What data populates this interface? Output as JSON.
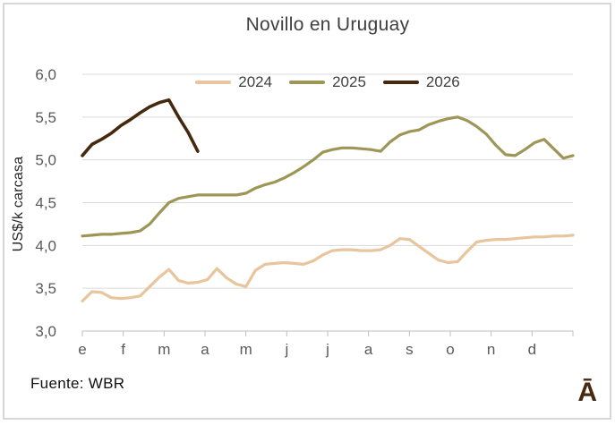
{
  "chart_data": {
    "type": "line",
    "title": "Novillo en Uruguay",
    "ylabel": "US$/k carcasa",
    "source": "Fuente: WBR",
    "logo": "Ā",
    "grid": true,
    "legend_position": "top",
    "ylim": [
      3.0,
      6.0
    ],
    "y_tick_step": 0.5,
    "y_ticks": [
      {
        "value": 6.0,
        "label": "6,0"
      },
      {
        "value": 5.5,
        "label": "5,5"
      },
      {
        "value": 5.0,
        "label": "5,0"
      },
      {
        "value": 4.5,
        "label": "4,5"
      },
      {
        "value": 4.0,
        "label": "4,0"
      },
      {
        "value": 3.5,
        "label": "3,5"
      },
      {
        "value": 3.0,
        "label": "3,0"
      }
    ],
    "x_tick_labels": [
      "e",
      "f",
      "m",
      "a",
      "m",
      "j",
      "j",
      "a",
      "s",
      "o",
      "n",
      "d"
    ],
    "x_unit": "weeks",
    "points_per_year": 52,
    "colors": {
      "gridline": "#d9d9d9",
      "axis": "#bfbfbf",
      "tick_label": "#595959",
      "title_text": "#3f3f3f"
    },
    "series": [
      {
        "name": "2024",
        "color": "#e8c59d",
        "stroke_width": 3.2,
        "values": [
          3.35,
          3.46,
          3.45,
          3.39,
          3.38,
          3.39,
          3.41,
          3.52,
          3.63,
          3.72,
          3.59,
          3.56,
          3.57,
          3.6,
          3.73,
          3.62,
          3.55,
          3.52,
          3.71,
          3.78,
          3.79,
          3.8,
          3.79,
          3.78,
          3.82,
          3.89,
          3.94,
          3.95,
          3.95,
          3.94,
          3.94,
          3.95,
          4.0,
          4.08,
          4.07,
          3.99,
          3.91,
          3.83,
          3.8,
          3.81,
          3.93,
          4.04,
          4.06,
          4.07,
          4.07,
          4.08,
          4.09,
          4.1,
          4.1,
          4.11,
          4.11,
          4.12
        ]
      },
      {
        "name": "2025",
        "color": "#9d9657",
        "stroke_width": 3.2,
        "values": [
          4.11,
          4.12,
          4.13,
          4.13,
          4.14,
          4.15,
          4.17,
          4.25,
          4.38,
          4.5,
          4.55,
          4.57,
          4.59,
          4.59,
          4.59,
          4.59,
          4.59,
          4.61,
          4.67,
          4.71,
          4.74,
          4.79,
          4.85,
          4.92,
          5.0,
          5.09,
          5.12,
          5.14,
          5.14,
          5.13,
          5.12,
          5.1,
          5.21,
          5.29,
          5.33,
          5.35,
          5.41,
          5.45,
          5.48,
          5.5,
          5.46,
          5.39,
          5.3,
          5.17,
          5.06,
          5.05,
          5.12,
          5.2,
          5.24,
          5.13,
          5.02,
          5.05
        ]
      },
      {
        "name": "2026",
        "color": "#45290f",
        "stroke_width": 3.6,
        "values": [
          5.05,
          5.18,
          5.24,
          5.31,
          5.4,
          5.47,
          5.55,
          5.62,
          5.67,
          5.7,
          5.5,
          5.32,
          5.1
        ]
      }
    ]
  }
}
